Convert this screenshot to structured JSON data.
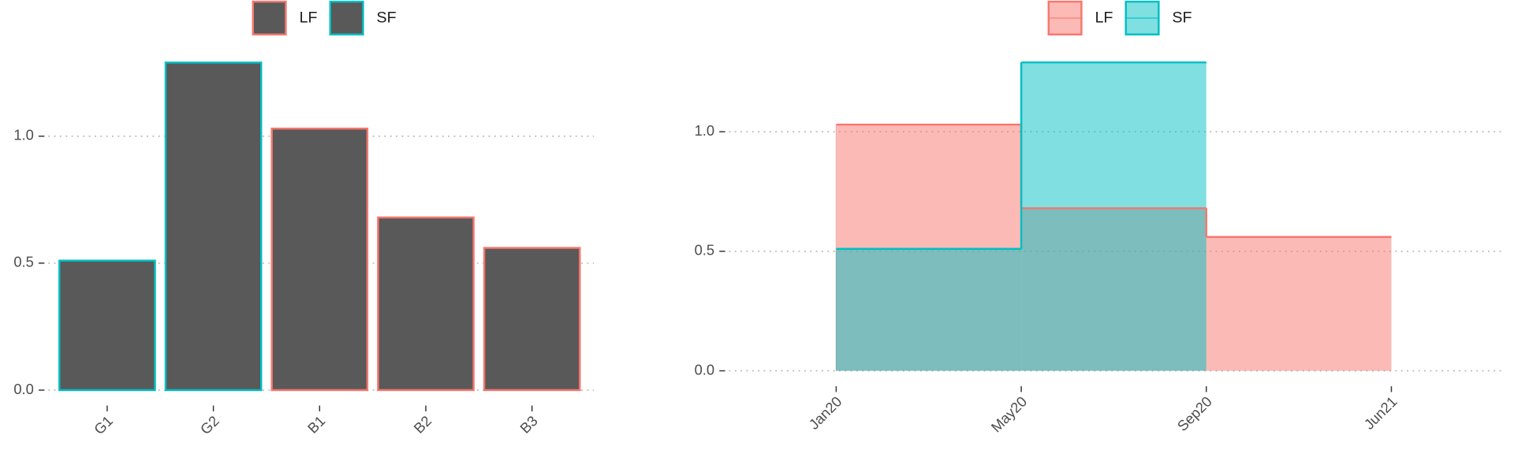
{
  "chart_data": [
    {
      "type": "bar",
      "categories": [
        "G1",
        "G2",
        "B1",
        "B2",
        "B3"
      ],
      "series": [
        {
          "name": "LF",
          "color": "#f8766d",
          "values": [
            null,
            null,
            1.03,
            0.68,
            0.56
          ]
        },
        {
          "name": "SF",
          "color": "#00bfc4",
          "values": [
            0.51,
            1.29,
            null,
            null,
            null
          ]
        }
      ],
      "bar_fill": "#595959",
      "ylim": [
        0,
        1.3
      ],
      "yticks": [
        0.0,
        0.5,
        1.0
      ],
      "grid": true,
      "legend_position": "top"
    },
    {
      "type": "step-area",
      "categories": [
        "Jan20",
        "May20",
        "Sep20",
        "Jun21"
      ],
      "series": [
        {
          "name": "LF",
          "color": "#f8766d",
          "values": [
            1.03,
            0.68,
            0.56,
            null
          ]
        },
        {
          "name": "SF",
          "color": "#00bfc4",
          "values": [
            0.51,
            1.29,
            null,
            null
          ]
        }
      ],
      "fill_opacity": 0.5,
      "ylim": [
        0,
        1.3
      ],
      "yticks": [
        0.0,
        0.5,
        1.0
      ],
      "grid": true,
      "legend_position": "top"
    }
  ]
}
